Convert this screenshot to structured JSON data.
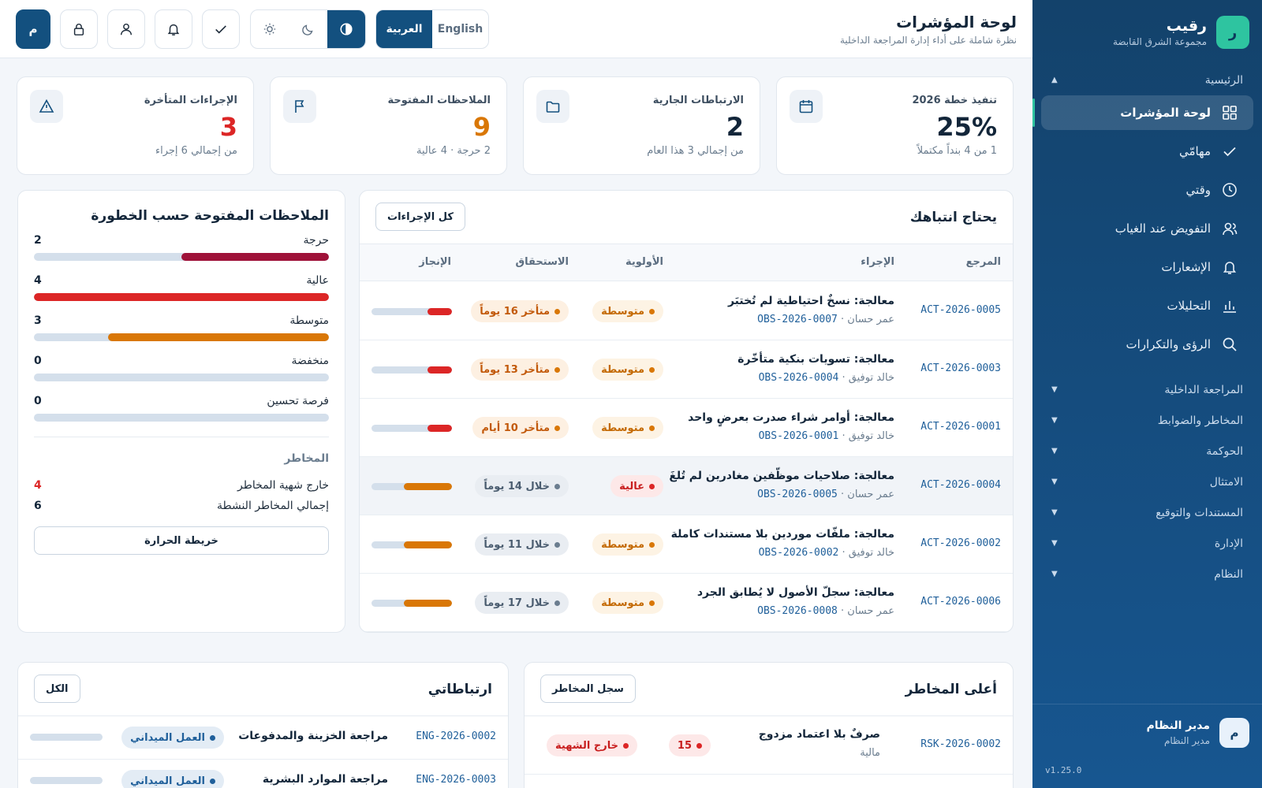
{
  "brand": {
    "logo_letter": "ر",
    "name": "رقيب",
    "subtitle": "مجموعة الشرق القابضة",
    "accent": "#2ec4a0"
  },
  "sidebar": {
    "main_section": "الرئيسية",
    "items": [
      {
        "label": "لوحة المؤشرات",
        "icon": "grid-icon",
        "active": true
      },
      {
        "label": "مهامّي",
        "icon": "check-icon"
      },
      {
        "label": "وقتي",
        "icon": "clock-icon"
      },
      {
        "label": "التفويض عند الغياب",
        "icon": "user-delegate-icon"
      },
      {
        "label": "الإشعارات",
        "icon": "bell-icon"
      },
      {
        "label": "التحليلات",
        "icon": "bar-chart-icon"
      },
      {
        "label": "الرؤى والتكرارات",
        "icon": "search-icon"
      }
    ],
    "sections": [
      "المراجعة الداخلية",
      "المخاطر والضوابط",
      "الحوكمة",
      "الامتثال",
      "المستندات والتوقيع",
      "الإدارة",
      "النظام"
    ],
    "user": {
      "avatar_letter": "م",
      "name": "مدير النظام",
      "role": "مدير النظام"
    },
    "version": "v1.25.0"
  },
  "header": {
    "title": "لوحة المؤشرات",
    "subtitle": "نظرة شاملة على أداء إدارة المراجعة الداخلية",
    "lang_ar": "العربية",
    "lang_en": "English",
    "avatar_letter": "م"
  },
  "kpis": [
    {
      "label": "تنفيذ خطة 2026",
      "value": "25%",
      "sub": "1 من 4 بنداً مكتملاً",
      "icon": "calendar-icon",
      "color": "#13263a"
    },
    {
      "label": "الارتباطات الجارية",
      "value": "2",
      "sub": "من إجمالي 3 هذا العام",
      "icon": "folder-icon",
      "color": "#13263a"
    },
    {
      "label": "الملاحظات المفتوحة",
      "value": "9",
      "sub": "2 حرجة · 4 عالية",
      "icon": "flag-icon",
      "color": "#d97706"
    },
    {
      "label": "الإجراءات المتأخرة",
      "value": "3",
      "sub": "من إجمالي 6 إجراء",
      "icon": "warning-icon",
      "color": "#dc2626"
    }
  ],
  "attention": {
    "title": "يحتاج انتباهك",
    "all_button": "كل الإجراءات",
    "columns": {
      "ref": "المرجع",
      "action": "الإجراء",
      "priority": "الأولوية",
      "due": "الاستحقاق",
      "progress": "الإنجاز"
    },
    "rows": [
      {
        "ref": "ACT-2026-0005",
        "title": "معالجة: نسخٌ احتياطية لم تُختبَر",
        "owner": "عمر حسان",
        "obs": "OBS-2026-0007",
        "priority": "متوسطة",
        "priority_kind": "med",
        "due": "متأخر 16 يوماً",
        "due_kind": "late",
        "progress": 0.3,
        "progress_color": "#dc2626"
      },
      {
        "ref": "ACT-2026-0003",
        "title": "معالجة: تسويات بنكية متأخّرة",
        "owner": "خالد توفيق",
        "obs": "OBS-2026-0004",
        "priority": "متوسطة",
        "priority_kind": "med",
        "due": "متأخر 13 يوماً",
        "due_kind": "late",
        "progress": 0.3,
        "progress_color": "#dc2626"
      },
      {
        "ref": "ACT-2026-0001",
        "title": "معالجة: أوامر شراء صدرت بعرضٍ واحد",
        "owner": "خالد توفيق",
        "obs": "OBS-2026-0001",
        "priority": "متوسطة",
        "priority_kind": "med",
        "due": "متأخر 10 أيام",
        "due_kind": "late",
        "progress": 0.3,
        "progress_color": "#dc2626"
      },
      {
        "ref": "ACT-2026-0004",
        "title": "معالجة: صلاحيات موظّفين مغادرين لم تُلغَ",
        "owner": "عمر حسان",
        "obs": "OBS-2026-0005",
        "priority": "عالية",
        "priority_kind": "high",
        "due": "خلال 14 يوماً",
        "due_kind": "within",
        "progress": 0.6,
        "progress_color": "#d97706",
        "highlight": true
      },
      {
        "ref": "ACT-2026-0002",
        "title": "معالجة: ملفّات موردين بلا مستندات كاملة",
        "owner": "خالد توفيق",
        "obs": "OBS-2026-0002",
        "priority": "متوسطة",
        "priority_kind": "med",
        "due": "خلال 11 يوماً",
        "due_kind": "within",
        "progress": 0.6,
        "progress_color": "#d97706"
      },
      {
        "ref": "ACT-2026-0006",
        "title": "معالجة: سجلّ الأصول لا يُطابق الجرد",
        "owner": "عمر حسان",
        "obs": "OBS-2026-0008",
        "priority": "متوسطة",
        "priority_kind": "med",
        "due": "خلال 17 يوماً",
        "due_kind": "within",
        "progress": 0.6,
        "progress_color": "#d97706"
      }
    ]
  },
  "severity": {
    "title": "الملاحظات المفتوحة حسب الخطورة",
    "max": 4,
    "items": [
      {
        "label": "حرجة",
        "count": 2,
        "color": "#9f1239"
      },
      {
        "label": "عالية",
        "count": 4,
        "color": "#dc2626"
      },
      {
        "label": "متوسطة",
        "count": 3,
        "color": "#d97706"
      },
      {
        "label": "منخفضة",
        "count": 0,
        "color": "#16a34a"
      },
      {
        "label": "فرصة تحسين",
        "count": 0,
        "color": "#2563eb"
      }
    ],
    "risks_title": "المخاطر",
    "risks": [
      {
        "label": "خارج شهية المخاطر",
        "value": "4",
        "color": "#dc2626"
      },
      {
        "label": "إجمالي المخاطر النشطة",
        "value": "6",
        "color": "#13263a"
      }
    ],
    "heatmap_button": "خريطة الحرارة"
  },
  "top_risks": {
    "title": "أعلى المخاطر",
    "button": "سجل المخاطر",
    "rows": [
      {
        "ref": "RSK-2026-0002",
        "title": "صرفٌ بلا اعتماد مزدوج",
        "category": "مالية",
        "score": "15",
        "status": "خارج الشهية"
      }
    ]
  },
  "engagements": {
    "title": "ارتباطاتي",
    "button": "الكل",
    "rows": [
      {
        "ref": "ENG-2026-0002",
        "title": "مراجعة الخزينة والمدفوعات",
        "phase": "العمل الميداني"
      },
      {
        "ref": "ENG-2026-0003",
        "title": "مراجعة الموارد البشرية",
        "phase": "العمل الميداني"
      }
    ]
  }
}
